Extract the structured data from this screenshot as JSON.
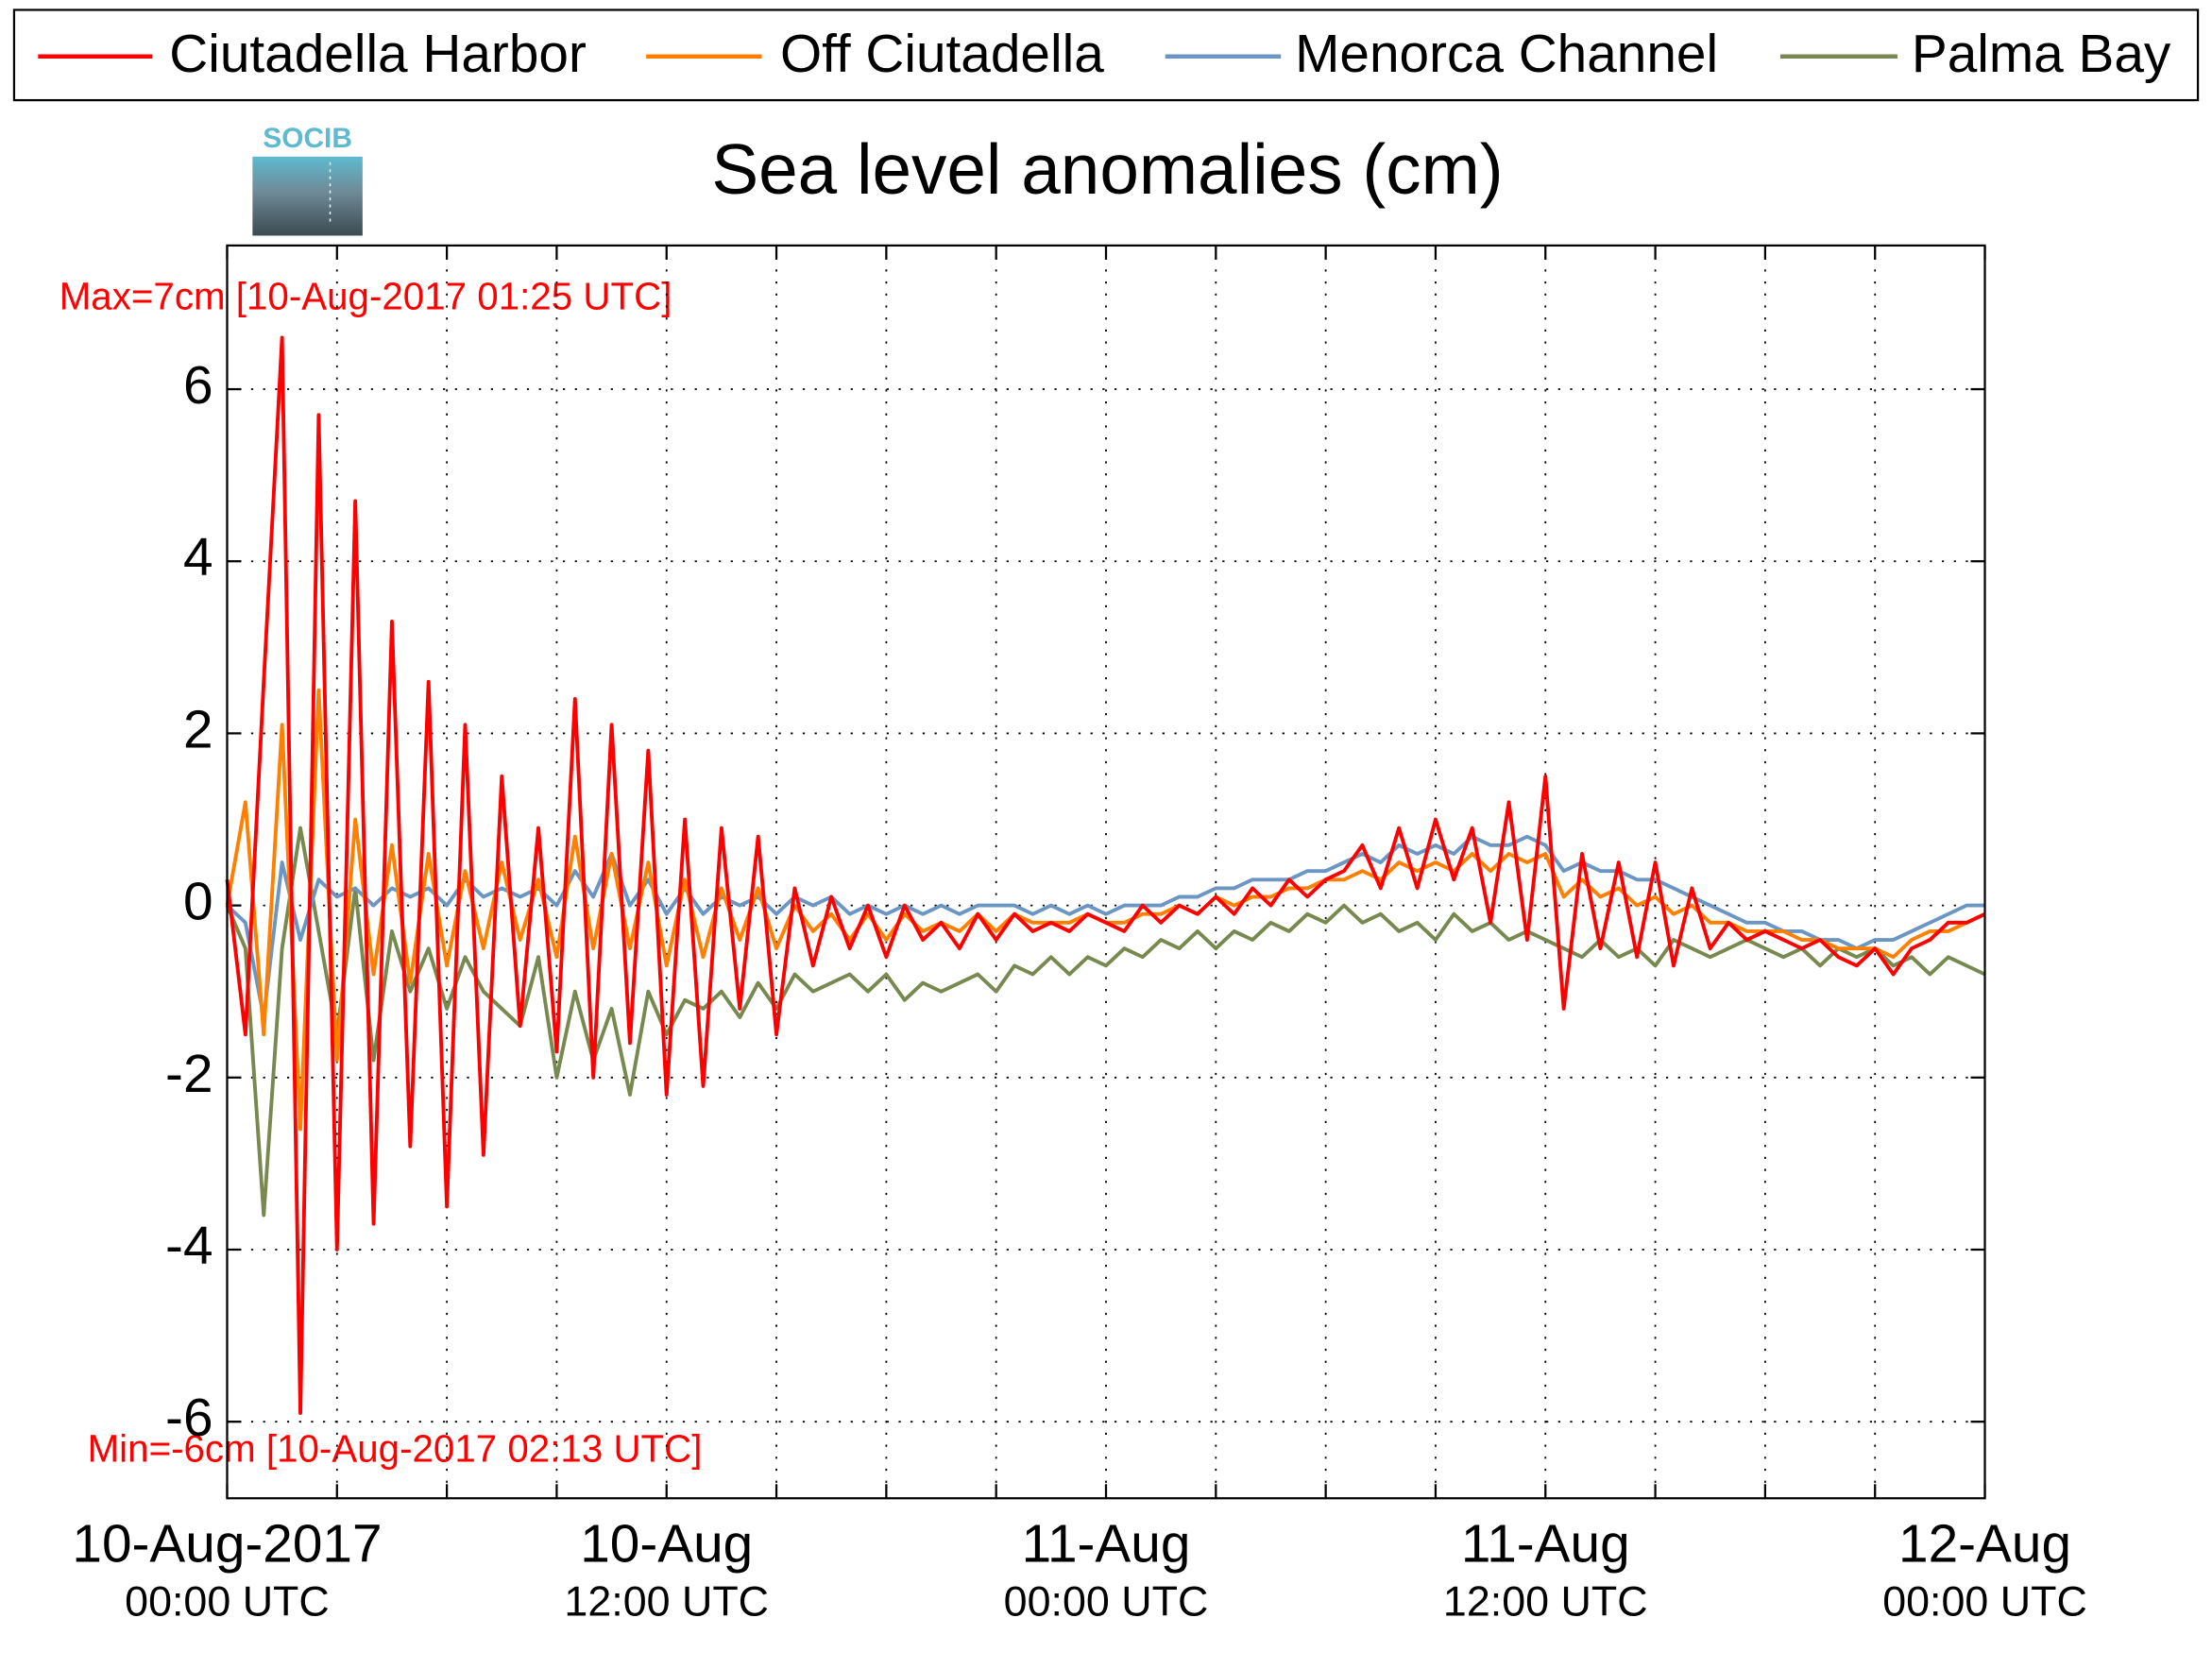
{
  "chart_data": {
    "type": "line",
    "title": "Sea level anomalies (cm)",
    "logo_text": "SOCIB",
    "annotations": [
      "Max=7cm [10-Aug-2017 01:25 UTC]",
      "Min=-6cm [10-Aug-2017 02:13 UTC]"
    ],
    "x": [
      "2017-08-10T00:00",
      "2017-08-10T00:30",
      "2017-08-10T01:00",
      "2017-08-10T01:30",
      "2017-08-10T02:00",
      "2017-08-10T02:30",
      "2017-08-10T03:00",
      "2017-08-10T03:30",
      "2017-08-10T04:00",
      "2017-08-10T04:30",
      "2017-08-10T05:00",
      "2017-08-10T05:30",
      "2017-08-10T06:00",
      "2017-08-10T06:30",
      "2017-08-10T07:00",
      "2017-08-10T07:30",
      "2017-08-10T08:00",
      "2017-08-10T08:30",
      "2017-08-10T09:00",
      "2017-08-10T09:30",
      "2017-08-10T10:00",
      "2017-08-10T10:30",
      "2017-08-10T11:00",
      "2017-08-10T11:30",
      "2017-08-10T12:00",
      "2017-08-10T12:30",
      "2017-08-10T13:00",
      "2017-08-10T13:30",
      "2017-08-10T14:00",
      "2017-08-10T14:30",
      "2017-08-10T15:00",
      "2017-08-10T15:30",
      "2017-08-10T16:00",
      "2017-08-10T16:30",
      "2017-08-10T17:00",
      "2017-08-10T17:30",
      "2017-08-10T18:00",
      "2017-08-10T18:30",
      "2017-08-10T19:00",
      "2017-08-10T19:30",
      "2017-08-10T20:00",
      "2017-08-10T20:30",
      "2017-08-10T21:00",
      "2017-08-10T21:30",
      "2017-08-10T22:00",
      "2017-08-10T22:30",
      "2017-08-10T23:00",
      "2017-08-10T23:30",
      "2017-08-11T00:00",
      "2017-08-11T00:30",
      "2017-08-11T01:00",
      "2017-08-11T01:30",
      "2017-08-11T02:00",
      "2017-08-11T02:30",
      "2017-08-11T03:00",
      "2017-08-11T03:30",
      "2017-08-11T04:00",
      "2017-08-11T04:30",
      "2017-08-11T05:00",
      "2017-08-11T05:30",
      "2017-08-11T06:00",
      "2017-08-11T06:30",
      "2017-08-11T07:00",
      "2017-08-11T07:30",
      "2017-08-11T08:00",
      "2017-08-11T08:30",
      "2017-08-11T09:00",
      "2017-08-11T09:30",
      "2017-08-11T10:00",
      "2017-08-11T10:30",
      "2017-08-11T11:00",
      "2017-08-11T11:30",
      "2017-08-11T12:00",
      "2017-08-11T12:30",
      "2017-08-11T13:00",
      "2017-08-11T13:30",
      "2017-08-11T14:00",
      "2017-08-11T14:30",
      "2017-08-11T15:00",
      "2017-08-11T15:30",
      "2017-08-11T16:00",
      "2017-08-11T16:30",
      "2017-08-11T17:00",
      "2017-08-11T17:30",
      "2017-08-11T18:00",
      "2017-08-11T18:30",
      "2017-08-11T19:00",
      "2017-08-11T19:30",
      "2017-08-11T20:00",
      "2017-08-11T20:30",
      "2017-08-11T21:00",
      "2017-08-11T21:30",
      "2017-08-11T22:00",
      "2017-08-11T22:30",
      "2017-08-11T23:00",
      "2017-08-11T23:30",
      "2017-08-12T00:00"
    ],
    "series": [
      {
        "name": "Ciutadella Harbor",
        "color": "#ff0000",
        "values": [
          0.3,
          -1.5,
          2.6,
          6.6,
          -5.9,
          5.7,
          -4.0,
          4.7,
          -3.7,
          3.3,
          -2.8,
          2.6,
          -3.5,
          2.1,
          -2.9,
          1.5,
          -1.4,
          0.9,
          -1.7,
          2.4,
          -2.0,
          2.1,
          -1.6,
          1.8,
          -2.2,
          1.0,
          -2.1,
          0.9,
          -1.2,
          0.8,
          -1.5,
          0.2,
          -0.7,
          0.1,
          -0.5,
          0.0,
          -0.6,
          0.0,
          -0.4,
          -0.2,
          -0.5,
          -0.1,
          -0.4,
          -0.1,
          -0.3,
          -0.2,
          -0.3,
          -0.1,
          -0.2,
          -0.3,
          0.0,
          -0.2,
          0.0,
          -0.1,
          0.1,
          -0.1,
          0.2,
          0.0,
          0.3,
          0.1,
          0.3,
          0.4,
          0.7,
          0.2,
          0.9,
          0.2,
          1.0,
          0.3,
          0.9,
          -0.2,
          1.2,
          -0.4,
          1.5,
          -1.2,
          0.6,
          -0.5,
          0.5,
          -0.6,
          0.5,
          -0.7,
          0.2,
          -0.5,
          -0.2,
          -0.4,
          -0.3,
          -0.4,
          -0.5,
          -0.4,
          -0.6,
          -0.7,
          -0.5,
          -0.8,
          -0.5,
          -0.4,
          -0.2,
          -0.2,
          -0.1
        ]
      },
      {
        "name": "Off Ciutadella",
        "color": "#ff8000",
        "values": [
          0.0,
          1.2,
          -1.5,
          2.1,
          -2.6,
          2.5,
          -1.8,
          1.0,
          -0.8,
          0.7,
          -0.9,
          0.6,
          -0.7,
          0.4,
          -0.5,
          0.5,
          -0.4,
          0.3,
          -0.6,
          0.8,
          -0.5,
          0.6,
          -0.5,
          0.5,
          -0.7,
          0.3,
          -0.6,
          0.2,
          -0.4,
          0.2,
          -0.5,
          0.0,
          -0.3,
          -0.1,
          -0.4,
          -0.1,
          -0.4,
          -0.1,
          -0.3,
          -0.2,
          -0.3,
          -0.1,
          -0.3,
          -0.1,
          -0.2,
          -0.2,
          -0.2,
          -0.1,
          -0.2,
          -0.2,
          -0.1,
          -0.1,
          0.0,
          -0.1,
          0.1,
          0.0,
          0.1,
          0.1,
          0.2,
          0.2,
          0.3,
          0.3,
          0.4,
          0.3,
          0.5,
          0.4,
          0.5,
          0.4,
          0.6,
          0.4,
          0.6,
          0.5,
          0.6,
          0.1,
          0.3,
          0.1,
          0.2,
          0.0,
          0.1,
          -0.1,
          0.0,
          -0.2,
          -0.2,
          -0.3,
          -0.3,
          -0.3,
          -0.4,
          -0.4,
          -0.5,
          -0.5,
          -0.5,
          -0.6,
          -0.4,
          -0.3,
          -0.3,
          -0.2,
          -0.1
        ]
      },
      {
        "name": "Menorca Channel",
        "color": "#6b96c4",
        "values": [
          0.0,
          -0.2,
          -1.3,
          0.5,
          -0.4,
          0.3,
          0.1,
          0.2,
          0.0,
          0.2,
          0.1,
          0.2,
          0.0,
          0.3,
          0.1,
          0.2,
          0.1,
          0.2,
          0.0,
          0.4,
          0.1,
          0.6,
          0.0,
          0.3,
          -0.1,
          0.2,
          -0.1,
          0.1,
          0.0,
          0.1,
          -0.1,
          0.1,
          0.0,
          0.1,
          -0.1,
          0.0,
          -0.1,
          0.0,
          -0.1,
          0.0,
          -0.1,
          0.0,
          0.0,
          0.0,
          -0.1,
          0.0,
          -0.1,
          0.0,
          -0.1,
          0.0,
          0.0,
          0.0,
          0.1,
          0.1,
          0.2,
          0.2,
          0.3,
          0.3,
          0.3,
          0.4,
          0.4,
          0.5,
          0.6,
          0.5,
          0.7,
          0.6,
          0.7,
          0.6,
          0.8,
          0.7,
          0.7,
          0.8,
          0.7,
          0.4,
          0.5,
          0.4,
          0.4,
          0.3,
          0.3,
          0.2,
          0.1,
          0.0,
          -0.1,
          -0.2,
          -0.2,
          -0.3,
          -0.3,
          -0.4,
          -0.4,
          -0.5,
          -0.4,
          -0.4,
          -0.3,
          -0.2,
          -0.1,
          0.0,
          0.0
        ]
      },
      {
        "name": "Palma Bay",
        "color": "#77894f",
        "values": [
          0.0,
          -0.5,
          -3.6,
          -0.5,
          0.9,
          -0.3,
          -1.5,
          0.2,
          -1.8,
          -0.3,
          -1.0,
          -0.5,
          -1.2,
          -0.6,
          -1.0,
          -1.2,
          -1.4,
          -0.6,
          -2.0,
          -1.0,
          -1.8,
          -1.2,
          -2.2,
          -1.0,
          -1.5,
          -1.1,
          -1.2,
          -1.0,
          -1.3,
          -0.9,
          -1.2,
          -0.8,
          -1.0,
          -0.9,
          -0.8,
          -1.0,
          -0.8,
          -1.1,
          -0.9,
          -1.0,
          -0.9,
          -0.8,
          -1.0,
          -0.7,
          -0.8,
          -0.6,
          -0.8,
          -0.6,
          -0.7,
          -0.5,
          -0.6,
          -0.4,
          -0.5,
          -0.3,
          -0.5,
          -0.3,
          -0.4,
          -0.2,
          -0.3,
          -0.1,
          -0.2,
          0.0,
          -0.2,
          -0.1,
          -0.3,
          -0.2,
          -0.4,
          -0.1,
          -0.3,
          -0.2,
          -0.4,
          -0.3,
          -0.4,
          -0.5,
          -0.6,
          -0.4,
          -0.6,
          -0.5,
          -0.7,
          -0.4,
          -0.5,
          -0.6,
          -0.5,
          -0.4,
          -0.5,
          -0.6,
          -0.5,
          -0.7,
          -0.5,
          -0.6,
          -0.5,
          -0.7,
          -0.6,
          -0.8,
          -0.6,
          -0.7,
          -0.8
        ]
      }
    ],
    "xlim": [
      "2017-08-10T00:00",
      "2017-08-12T00:00"
    ],
    "xticks": [
      {
        "value": "2017-08-10T00:00",
        "label": "10-Aug-2017\n00:00 UTC"
      },
      "2017-08-10T03:00",
      "2017-08-10T06:00",
      "2017-08-10T09:00",
      {
        "value": "2017-08-10T12:00",
        "label": "10-Aug\n12:00 UTC"
      },
      "2017-08-10T15:00",
      "2017-08-10T18:00",
      "2017-08-10T21:00",
      {
        "value": "2017-08-11T00:00",
        "label": "11-Aug\n00:00 UTC"
      },
      "2017-08-11T03:00",
      "2017-08-11T06:00",
      "2017-08-11T09:00",
      {
        "value": "2017-08-11T12:00",
        "label": "11-Aug\n12:00 UTC"
      },
      "2017-08-11T15:00",
      "2017-08-11T18:00",
      "2017-08-11T21:00",
      {
        "value": "2017-08-12T00:00",
        "label": "12-Aug\n00:00 UTC"
      }
    ],
    "ylim": [
      -6.89,
      7.67
    ],
    "yticks": [
      -6,
      -4,
      -2,
      0,
      2,
      4,
      6
    ],
    "grid": true,
    "legend": "top"
  }
}
